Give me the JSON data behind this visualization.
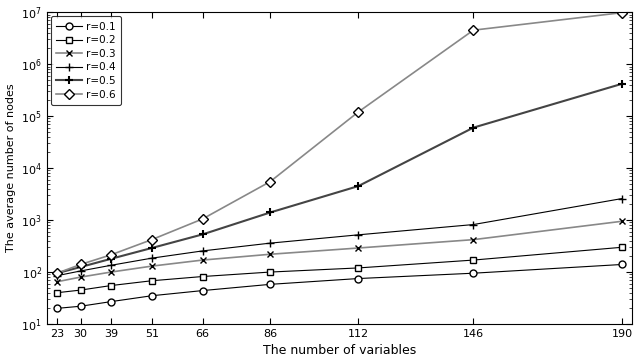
{
  "x": [
    23,
    30,
    39,
    51,
    66,
    86,
    112,
    146,
    190
  ],
  "series_data": {
    "r=0.1": [
      20,
      22,
      27,
      35,
      44,
      58,
      75,
      95,
      140
    ],
    "r=0.2": [
      40,
      45,
      55,
      68,
      82,
      100,
      120,
      170,
      300
    ],
    "r=0.3": [
      65,
      80,
      100,
      130,
      170,
      220,
      290,
      420,
      950
    ],
    "r=0.4": [
      85,
      105,
      135,
      185,
      255,
      360,
      520,
      820,
      2600
    ],
    "r=0.5": [
      95,
      125,
      180,
      290,
      530,
      1400,
      4500,
      60000,
      420000
    ],
    "r=0.6": [
      95,
      140,
      215,
      420,
      1050,
      5500,
      120000,
      4500000,
      9800000
    ]
  },
  "markers": {
    "r=0.1": "o",
    "r=0.2": "s",
    "r=0.3": "x",
    "r=0.4": "+",
    "r=0.5": "+",
    "r=0.6": "D"
  },
  "mfc": {
    "r=0.1": "white",
    "r=0.2": "white",
    "r=0.3": "black",
    "r=0.4": "black",
    "r=0.5": "black",
    "r=0.6": "white"
  },
  "mec": {
    "r=0.1": "black",
    "r=0.2": "black",
    "r=0.3": "black",
    "r=0.4": "black",
    "r=0.5": "black",
    "r=0.6": "black"
  },
  "line_colors": {
    "r=0.1": "#000000",
    "r=0.2": "#000000",
    "r=0.3": "#888888",
    "r=0.4": "#000000",
    "r=0.5": "#444444",
    "r=0.6": "#888888"
  },
  "linewidths": {
    "r=0.1": 0.8,
    "r=0.2": 0.8,
    "r=0.3": 1.2,
    "r=0.4": 0.8,
    "r=0.5": 1.5,
    "r=0.6": 1.2
  },
  "markersizes": {
    "r=0.1": 5,
    "r=0.2": 5,
    "r=0.3": 5,
    "r=0.4": 6,
    "r=0.5": 6,
    "r=0.6": 5
  },
  "labels": [
    "r=0.1",
    "r=0.2",
    "r=0.3",
    "r=0.4",
    "r=0.5",
    "r=0.6"
  ],
  "xlabel": "The number of variables",
  "ylabel": "The average number of nodes",
  "ylim_min": 10,
  "ylim_max": 10000000,
  "xticks": [
    23,
    30,
    39,
    51,
    66,
    86,
    112,
    146,
    190
  ]
}
